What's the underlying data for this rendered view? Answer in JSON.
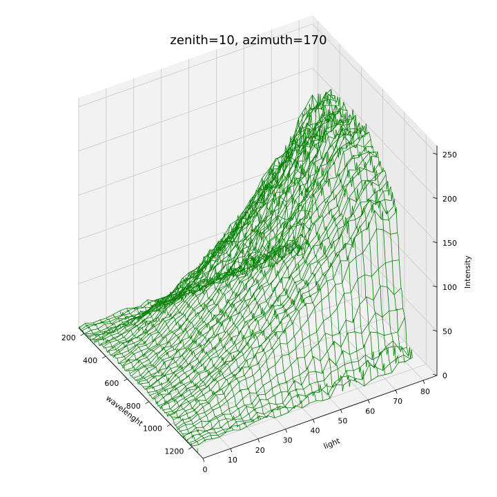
{
  "chart_data": {
    "type": "surface-3d-wireframe",
    "title": "zenith=10, azimuth=170",
    "xlabel": "wavelenght",
    "ylabel": "light",
    "zlabel": "Intensity",
    "x_ticks": [
      200,
      400,
      600,
      800,
      1000,
      1200
    ],
    "y_ticks": [
      0,
      10,
      20,
      30,
      40,
      50,
      60,
      70,
      80
    ],
    "z_ticks": [
      0,
      50,
      100,
      150,
      200,
      250
    ],
    "xlim": [
      150,
      1300
    ],
    "ylim": [
      0,
      85
    ],
    "zlim": [
      0,
      260
    ],
    "line_color": "#008000",
    "grid": true,
    "series": [
      {
        "wavelength": [
          150,
          200,
          250,
          300,
          350,
          400,
          450,
          500,
          550,
          600,
          650,
          700,
          750,
          800,
          850,
          900,
          950,
          1000,
          1050,
          1100,
          1150,
          1200
        ],
        "intensity_profile_peak_light": [
          5,
          10,
          35,
          120,
          175,
          175,
          230,
          232,
          225,
          228,
          230,
          222,
          230,
          228,
          215,
          205,
          195,
          185,
          170,
          80,
          25,
          10
        ],
        "light_values": [
          0,
          2.5,
          5,
          7.5,
          10,
          12.5,
          15,
          17.5,
          20,
          22.5,
          25,
          27.5,
          30,
          32.5,
          35,
          37.5,
          40,
          42.5,
          45,
          47.5,
          50,
          52.5,
          55,
          57.5,
          60,
          62.5,
          65,
          67.5,
          70,
          72.5,
          75,
          77.5,
          80
        ]
      }
    ]
  }
}
